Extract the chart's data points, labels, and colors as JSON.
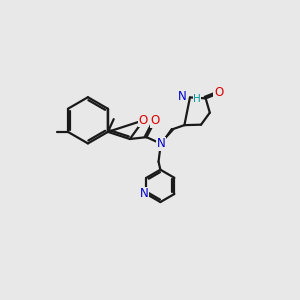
{
  "bg_color": "#e8e8e8",
  "bond_color": "#1a1a1a",
  "O_color": "#dd0000",
  "N_color": "#0000cc",
  "H_color": "#009999",
  "bond_lw": 1.6,
  "font_size": 8.5,
  "fig_w": 3.0,
  "fig_h": 3.0,
  "dpi": 100,
  "xl": 0.0,
  "xr": 10.0,
  "yb": 0.0,
  "yt": 10.0
}
